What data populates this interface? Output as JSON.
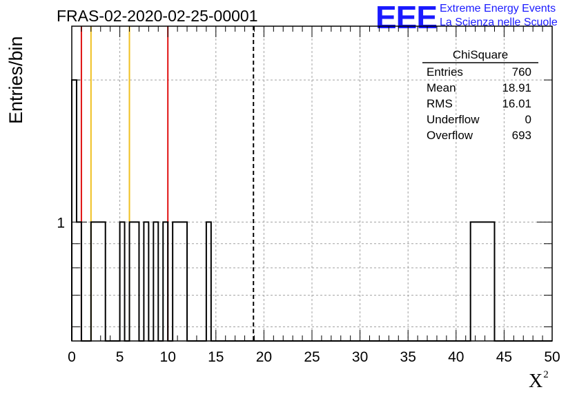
{
  "header": {
    "title": "FRAS-02-2020-02-25-00001",
    "logo_text": "EEE",
    "org_line1": "Extreme Energy Events",
    "org_line2": "La Scienza nelle Scuole"
  },
  "colors": {
    "histogram": "#000000",
    "red_line": "#e01010",
    "yellow_line": "#f0c020",
    "mean_line": "#000000",
    "grid": "#a0a0a0",
    "logo": "#1a1aff"
  },
  "chart_data": {
    "type": "histogram",
    "title": "FRAS-02-2020-02-25-00001",
    "xlabel": "X",
    "xlabel_superscript": "2",
    "ylabel": "Entries/bin",
    "xlim": [
      0,
      50
    ],
    "y_scale": "log",
    "ylim": [
      0.56,
      2.6
    ],
    "grid": true,
    "bin_width": 0.5,
    "bin_counts": [
      2,
      1,
      0,
      0,
      1,
      1,
      1,
      0,
      0,
      0,
      1,
      0,
      1,
      1,
      0,
      1,
      0,
      1,
      0,
      1,
      0,
      1,
      1,
      1,
      0,
      0,
      0,
      0,
      1,
      0,
      0,
      0,
      0,
      0,
      0,
      0,
      0,
      0,
      0,
      0,
      0,
      0,
      0,
      0,
      0,
      0,
      0,
      0,
      0,
      0,
      0,
      0,
      0,
      0,
      0,
      0,
      0,
      0,
      0,
      0,
      0,
      0,
      0,
      0,
      0,
      0,
      0,
      0,
      0,
      0,
      0,
      0,
      0,
      0,
      0,
      0,
      0,
      0,
      0,
      0,
      0,
      0,
      0,
      1,
      1,
      1,
      1,
      1,
      0,
      0,
      0,
      0,
      0,
      0,
      0,
      0,
      0,
      0,
      0,
      0
    ],
    "x_ticks": [
      "0",
      "5",
      "10",
      "15",
      "20",
      "25",
      "30",
      "35",
      "40",
      "45",
      "50"
    ],
    "y_ticks": [
      "1"
    ],
    "vertical_lines": [
      {
        "x": 1,
        "color": "red"
      },
      {
        "x": 2,
        "color": "yellow"
      },
      {
        "x": 6,
        "color": "yellow"
      },
      {
        "x": 10,
        "color": "red"
      },
      {
        "x": 18.91,
        "color": "black",
        "style": "dashed"
      }
    ],
    "stats_box": {
      "title": "ChiSquare",
      "rows": [
        {
          "label": "Entries",
          "value": "760"
        },
        {
          "label": "Mean",
          "value": "18.91"
        },
        {
          "label": "RMS",
          "value": "16.01"
        },
        {
          "label": "Underflow",
          "value": "0"
        },
        {
          "label": "Overflow",
          "value": "693"
        }
      ]
    }
  }
}
